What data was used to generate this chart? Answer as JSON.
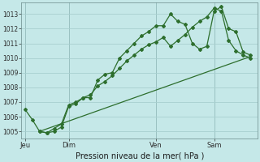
{
  "background_color": "#c5e8e8",
  "grid_color": "#a8d0d0",
  "line_color": "#2d6e2d",
  "title": "Pression niveau de la mer( hPa )",
  "ylim": [
    1004.5,
    1013.8
  ],
  "yticks": [
    1005,
    1006,
    1007,
    1008,
    1009,
    1010,
    1011,
    1012,
    1013
  ],
  "day_labels": [
    "Jeu",
    "Dim",
    "Ven",
    "Sam"
  ],
  "day_positions": [
    0,
    6,
    18,
    26
  ],
  "xlim": [
    -0.5,
    32
  ],
  "series1_x": [
    0,
    1,
    2,
    3,
    4,
    5,
    6,
    7,
    8,
    9,
    10,
    11,
    12,
    13,
    14,
    15,
    16,
    17,
    18,
    19,
    20,
    21,
    22,
    23,
    24,
    25,
    26,
    27,
    28,
    29,
    30,
    31
  ],
  "series1_y": [
    1006.5,
    1005.8,
    1005.0,
    1004.9,
    1005.0,
    1005.3,
    1006.7,
    1006.9,
    1007.3,
    1007.3,
    1008.5,
    1008.9,
    1009.0,
    1010.0,
    1010.5,
    1011.0,
    1011.5,
    1011.8,
    1012.2,
    1012.2,
    1013.0,
    1012.5,
    1012.3,
    1011.0,
    1010.6,
    1010.8,
    1013.2,
    1013.5,
    1012.0,
    1011.8,
    1010.4,
    1010.2
  ],
  "series2_x": [
    2,
    3,
    4,
    5,
    6,
    7,
    8,
    9,
    10,
    11,
    12,
    13,
    14,
    15,
    16,
    17,
    18,
    19,
    20,
    21,
    22,
    23,
    24,
    25,
    26,
    27,
    28,
    29,
    30,
    31
  ],
  "series2_y": [
    1005.0,
    1004.9,
    1005.2,
    1005.5,
    1006.8,
    1007.0,
    1007.3,
    1007.5,
    1008.1,
    1008.4,
    1008.8,
    1009.3,
    1009.8,
    1010.2,
    1010.6,
    1010.9,
    1011.1,
    1011.4,
    1010.8,
    1011.2,
    1011.6,
    1012.1,
    1012.5,
    1012.8,
    1013.4,
    1013.2,
    1011.2,
    1010.5,
    1010.2,
    1010.0
  ],
  "series3_x": [
    2,
    31
  ],
  "series3_y": [
    1005.0,
    1010.1
  ]
}
